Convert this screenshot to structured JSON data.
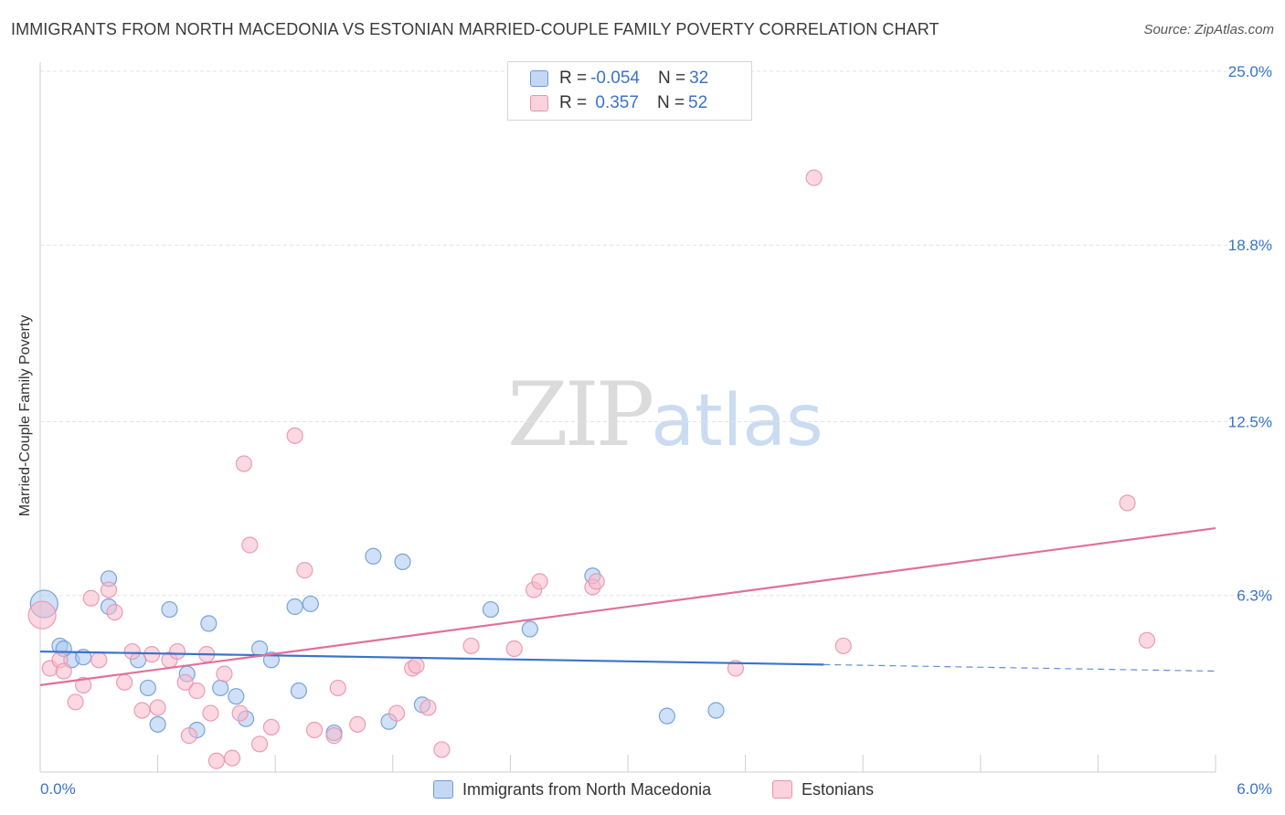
{
  "title": "IMMIGRANTS FROM NORTH MACEDONIA VS ESTONIAN MARRIED-COUPLE FAMILY POVERTY CORRELATION CHART",
  "source": "Source: ZipAtlas.com",
  "watermark": {
    "zip": "ZIP",
    "atlas": "atlas"
  },
  "legend": {
    "rows": [
      {
        "r_label": "R = ",
        "r_value": "-0.054",
        "n_label": "N = ",
        "n_value": "32",
        "color": "#a9c6ef"
      },
      {
        "r_label": "R = ",
        "r_value": " 0.357",
        "n_label": "N = ",
        "n_value": "52",
        "color": "#f7b8cb"
      }
    ]
  },
  "colors": {
    "blue_fill": "#a9c6ef",
    "blue_stroke": "#6b9bd6",
    "blue_line": "#3a73c9",
    "pink_fill": "#f7b8cb",
    "pink_stroke": "#e893ad",
    "pink_line": "#e0709a",
    "grid": "#e3e3e3",
    "tick_label": "#3a73c9"
  },
  "chart_data": {
    "type": "scatter",
    "title": "IMMIGRANTS FROM NORTH MACEDONIA VS ESTONIAN MARRIED-COUPLE FAMILY POVERTY CORRELATION CHART",
    "xlabel": "",
    "ylabel": "Married-Couple Family Poverty",
    "xlim": [
      0,
      6
    ],
    "ylim": [
      0,
      25
    ],
    "x_tick_labels": [
      "0.0%",
      "6.0%"
    ],
    "y_ticks": [
      6.3,
      12.5,
      18.8,
      25.0
    ],
    "y_tick_labels": [
      "6.3%",
      "12.5%",
      "18.8%",
      "25.0%"
    ],
    "grid": true,
    "legend_position": "top-center",
    "series": [
      {
        "name": "Immigrants from North Macedonia",
        "color": "#a9c6ef",
        "points": [
          [
            0.02,
            6.0
          ],
          [
            0.1,
            4.5
          ],
          [
            0.16,
            4.0
          ],
          [
            0.22,
            4.1
          ],
          [
            0.35,
            6.9
          ],
          [
            0.35,
            5.9
          ],
          [
            0.5,
            4.0
          ],
          [
            0.55,
            3.0
          ],
          [
            0.6,
            1.7
          ],
          [
            0.66,
            5.8
          ],
          [
            0.75,
            3.5
          ],
          [
            0.8,
            1.5
          ],
          [
            0.86,
            5.3
          ],
          [
            0.92,
            3.0
          ],
          [
            1.0,
            2.7
          ],
          [
            1.05,
            1.9
          ],
          [
            1.12,
            4.4
          ],
          [
            1.18,
            4.0
          ],
          [
            1.3,
            5.9
          ],
          [
            1.32,
            2.9
          ],
          [
            1.38,
            6.0
          ],
          [
            1.5,
            1.4
          ],
          [
            1.7,
            7.7
          ],
          [
            1.78,
            1.8
          ],
          [
            1.85,
            7.5
          ],
          [
            1.95,
            2.4
          ],
          [
            2.3,
            5.8
          ],
          [
            2.5,
            5.1
          ],
          [
            2.82,
            7.0
          ],
          [
            3.2,
            2.0
          ],
          [
            3.45,
            2.2
          ],
          [
            0.12,
            4.4
          ]
        ]
      },
      {
        "name": "Estonians",
        "color": "#f7b8cb",
        "points": [
          [
            0.01,
            5.6
          ],
          [
            0.05,
            3.7
          ],
          [
            0.1,
            4.0
          ],
          [
            0.12,
            3.6
          ],
          [
            0.18,
            2.5
          ],
          [
            0.22,
            3.1
          ],
          [
            0.26,
            6.2
          ],
          [
            0.3,
            4.0
          ],
          [
            0.35,
            6.5
          ],
          [
            0.38,
            5.7
          ],
          [
            0.43,
            3.2
          ],
          [
            0.47,
            4.3
          ],
          [
            0.52,
            2.2
          ],
          [
            0.57,
            4.2
          ],
          [
            0.6,
            2.3
          ],
          [
            0.66,
            4.0
          ],
          [
            0.7,
            4.3
          ],
          [
            0.74,
            3.2
          ],
          [
            0.76,
            1.3
          ],
          [
            0.8,
            2.9
          ],
          [
            0.85,
            4.2
          ],
          [
            0.87,
            2.1
          ],
          [
            0.9,
            0.4
          ],
          [
            0.94,
            3.5
          ],
          [
            0.98,
            0.5
          ],
          [
            1.02,
            2.1
          ],
          [
            1.04,
            11.0
          ],
          [
            1.07,
            8.1
          ],
          [
            1.12,
            1.0
          ],
          [
            1.18,
            1.6
          ],
          [
            1.3,
            12.0
          ],
          [
            1.35,
            7.2
          ],
          [
            1.4,
            1.5
          ],
          [
            1.5,
            1.3
          ],
          [
            1.52,
            3.0
          ],
          [
            1.62,
            1.7
          ],
          [
            1.82,
            2.1
          ],
          [
            1.9,
            3.7
          ],
          [
            1.92,
            3.8
          ],
          [
            1.98,
            2.3
          ],
          [
            2.05,
            0.8
          ],
          [
            2.2,
            4.5
          ],
          [
            2.42,
            4.4
          ],
          [
            2.52,
            6.5
          ],
          [
            2.55,
            6.8
          ],
          [
            2.82,
            6.6
          ],
          [
            2.84,
            6.8
          ],
          [
            3.55,
            3.7
          ],
          [
            3.95,
            21.2
          ],
          [
            4.1,
            4.5
          ],
          [
            5.55,
            9.6
          ],
          [
            5.65,
            4.7
          ]
        ]
      }
    ],
    "trendlines": [
      {
        "series": "Immigrants from North Macedonia",
        "solid_x": [
          0,
          4.0
        ],
        "dashed_x": [
          4.0,
          6.0
        ],
        "y_at_0": 4.3,
        "y_at_6": 3.6
      },
      {
        "series": "Estonians",
        "solid_x": [
          0,
          6.0
        ],
        "y_at_0": 3.1,
        "y_at_6": 8.7
      }
    ]
  }
}
